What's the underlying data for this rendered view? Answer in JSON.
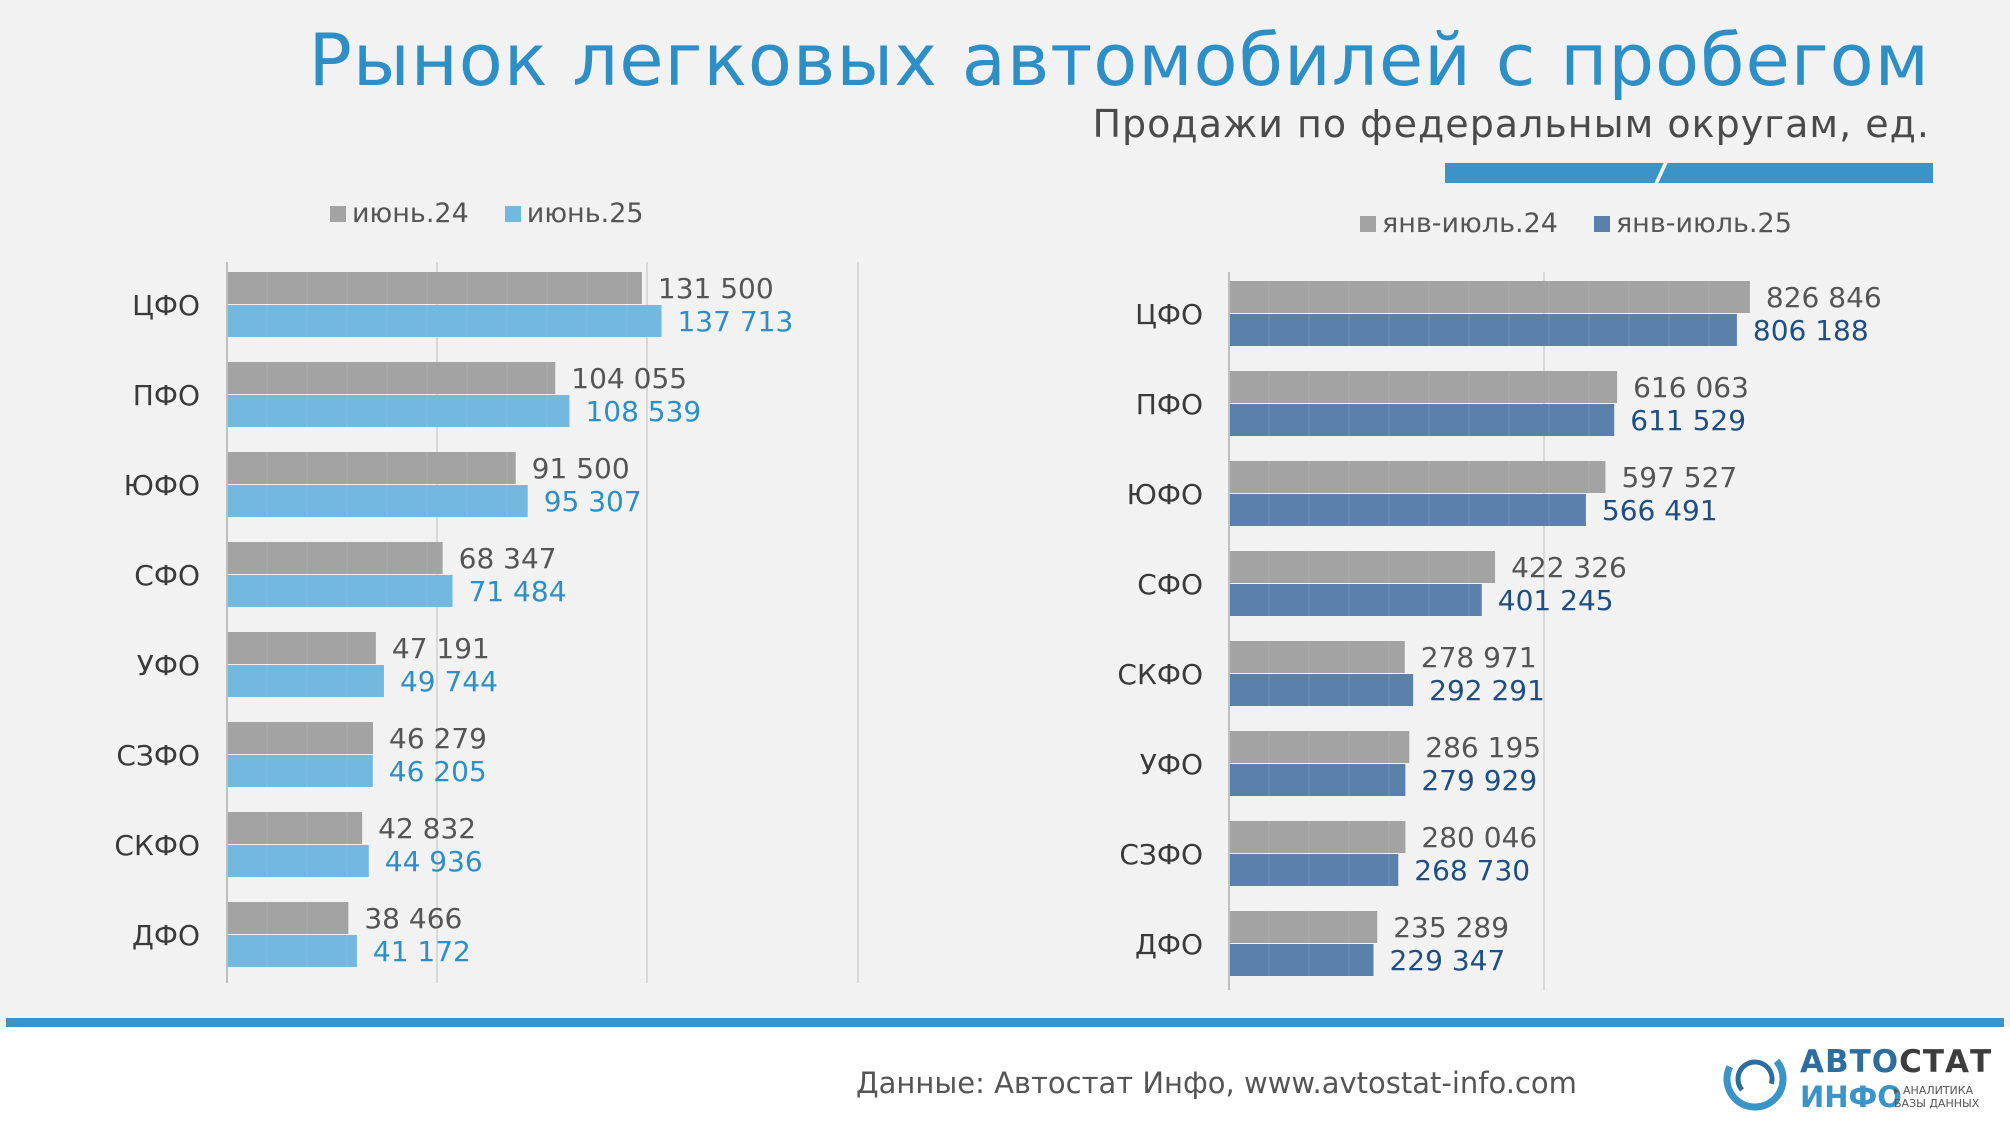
{
  "title": "Рынок легковых автомобилей с пробегом",
  "subtitle": "Продажи по федеральным округам, ед.",
  "colors": {
    "accent": "#2e8fc6",
    "gray_series": "#a3a3a3",
    "light_blue_series": "#72b8df",
    "dark_blue_series": "#5b80aa",
    "light_blue_label": "#2e8fc6",
    "dark_blue_label": "#1f4f82"
  },
  "source": "Данные: Автостат Инфо, www.avtostat-info.com",
  "logo": {
    "brand_part1": "АВТО",
    "brand_part2": "СТАТ",
    "brand_line2": "ИНФО",
    "tagline_line1": "▸ АНАЛИТИКА",
    "tagline_line2": "БАЗЫ ДАННЫХ"
  },
  "chart_data": [
    {
      "type": "bar",
      "orientation": "horizontal",
      "categories": [
        "ЦФО",
        "ПФО",
        "ЮФО",
        "СФО",
        "УФО",
        "СЗФО",
        "СКФО",
        "ДФО"
      ],
      "series": [
        {
          "name": "июнь.24",
          "color": "#a3a3a3",
          "values": [
            131500,
            104055,
            91500,
            68347,
            47191,
            46279,
            42832,
            38466
          ],
          "labels": [
            "131 500",
            "104 055",
            "91 500",
            "68 347",
            "47 191",
            "46 279",
            "42 832",
            "38 466"
          ]
        },
        {
          "name": "июнь.25",
          "color": "#72b8df",
          "values": [
            137713,
            108539,
            95307,
            71484,
            49744,
            46205,
            44936,
            41172
          ],
          "labels": [
            "137 713",
            "108 539",
            "95 307",
            "71 484",
            "49 744",
            "46 205",
            "44 936",
            "41 172"
          ]
        }
      ],
      "xlim": [
        0,
        200000
      ],
      "grid": true,
      "legend": "top"
    },
    {
      "type": "bar",
      "orientation": "horizontal",
      "categories": [
        "ЦФО",
        "ПФО",
        "ЮФО",
        "СФО",
        "СКФО",
        "УФО",
        "СЗФО",
        "ДФО"
      ],
      "series": [
        {
          "name": "янв-июль.24",
          "color": "#a3a3a3",
          "values": [
            826846,
            616063,
            597527,
            422326,
            278971,
            286195,
            280046,
            235289
          ],
          "labels": [
            "826 846",
            "616 063",
            "597 527",
            "422 326",
            "278 971",
            "286 195",
            "280 046",
            "235 289"
          ]
        },
        {
          "name": "янв-июль.25",
          "color": "#5b80aa",
          "values": [
            806188,
            611529,
            566491,
            401245,
            292291,
            279929,
            268730,
            229347
          ],
          "labels": [
            "806 188",
            "611 529",
            "566 491",
            "401 245",
            "292 291",
            "279 929",
            "268 730",
            "229 347"
          ]
        }
      ],
      "xlim": [
        0,
        1000000
      ],
      "grid": true,
      "legend": "top"
    }
  ]
}
